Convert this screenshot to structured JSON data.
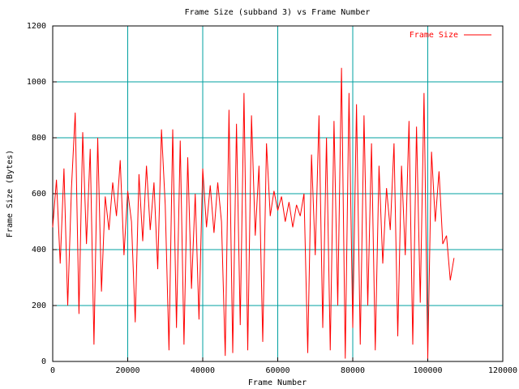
{
  "chart_data": {
    "type": "line",
    "title": "Frame Size (subband 3) vs Frame Number",
    "x_label": "Frame Number",
    "y_label": "Frame Size (Bytes)",
    "x": [
      0,
      1000,
      2000,
      3000,
      4000,
      5000,
      6000,
      7000,
      8000,
      9000,
      10000,
      11000,
      12000,
      13000,
      14000,
      15000,
      16000,
      17000,
      18000,
      19000,
      20000,
      21000,
      22000,
      23000,
      24000,
      25000,
      26000,
      27000,
      28000,
      29000,
      30000,
      31000,
      32000,
      33000,
      34000,
      35000,
      36000,
      37000,
      38000,
      39000,
      40000,
      41000,
      42000,
      43000,
      44000,
      45000,
      46000,
      47000,
      48000,
      49000,
      50000,
      51000,
      52000,
      53000,
      54000,
      55000,
      56000,
      57000,
      58000,
      59000,
      60000,
      61000,
      62000,
      63000,
      64000,
      65000,
      66000,
      67000,
      68000,
      69000,
      70000,
      71000,
      72000,
      73000,
      74000,
      75000,
      76000,
      77000,
      78000,
      79000,
      80000,
      81000,
      82000,
      83000,
      84000,
      85000,
      86000,
      87000,
      88000,
      89000,
      90000,
      91000,
      92000,
      93000,
      94000,
      95000,
      96000,
      97000,
      98000,
      99000,
      100000,
      101000,
      102000,
      103000,
      104000,
      105000,
      106000,
      107000
    ],
    "series": [
      {
        "name": "Frame Size",
        "color": "#ff0000",
        "values": [
          480,
          650,
          350,
          690,
          200,
          620,
          890,
          170,
          820,
          420,
          760,
          60,
          800,
          250,
          590,
          470,
          640,
          520,
          720,
          380,
          610,
          500,
          140,
          670,
          430,
          700,
          470,
          640,
          330,
          830,
          560,
          40,
          830,
          120,
          790,
          60,
          730,
          260,
          600,
          150,
          690,
          480,
          630,
          460,
          640,
          500,
          20,
          900,
          30,
          850,
          130,
          960,
          40,
          880,
          450,
          700,
          70,
          780,
          520,
          610,
          540,
          590,
          500,
          570,
          480,
          560,
          520,
          600,
          30,
          740,
          380,
          880,
          120,
          800,
          40,
          860,
          200,
          1050,
          10,
          960,
          120,
          920,
          60,
          880,
          200,
          780,
          40,
          700,
          350,
          620,
          470,
          780,
          90,
          700,
          380,
          860,
          60,
          840,
          210,
          960,
          10,
          750,
          500,
          680,
          420,
          450,
          290,
          370
        ]
      }
    ],
    "xlim": [
      0,
      120000
    ],
    "xticks": [
      0,
      20000,
      40000,
      60000,
      80000,
      100000,
      120000
    ],
    "ylim": [
      0,
      1200
    ],
    "yticks": [
      0,
      200,
      400,
      600,
      800,
      1000,
      1200
    ],
    "grid": true,
    "legend": "top-right"
  }
}
